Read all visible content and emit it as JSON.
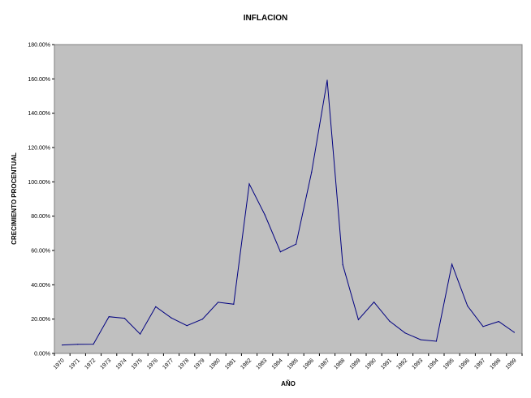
{
  "chart_data": {
    "type": "line",
    "title": "INFLACION",
    "xlabel": "AÑO",
    "ylabel": "CRECIMIENTO PROCENTUAL",
    "ylim": [
      0,
      180
    ],
    "y_ticks": [
      0,
      20,
      40,
      60,
      80,
      100,
      120,
      140,
      160,
      180
    ],
    "y_tick_labels": [
      "0.00%",
      "20.00%",
      "40.00%",
      "60.00%",
      "80.00%",
      "100.00%",
      "120.00%",
      "140.00%",
      "160.00%",
      "180.00%"
    ],
    "categories": [
      "1970",
      "1971",
      "1972",
      "1973",
      "1974",
      "1975",
      "1976",
      "1977",
      "1978",
      "1979",
      "1980",
      "1981",
      "1982",
      "1983",
      "1984",
      "1985",
      "1986",
      "1987",
      "1988",
      "1989",
      "1990",
      "1991",
      "1992",
      "1993",
      "1994",
      "1995",
      "1996",
      "1997",
      "1998",
      "1999"
    ],
    "series": [
      {
        "values": [
          4.9,
          5.3,
          5.4,
          21.4,
          20.5,
          11.3,
          27.2,
          20.7,
          16.2,
          20.0,
          29.8,
          28.7,
          98.8,
          80.8,
          59.2,
          63.7,
          105.7,
          159.2,
          51.7,
          19.7,
          29.9,
          18.8,
          11.9,
          8.0,
          7.1,
          52.0,
          27.7,
          15.7,
          18.6,
          12.3
        ]
      }
    ],
    "grid": false,
    "colors": {
      "plot_background": "#c0c0c0",
      "line": "#000080",
      "axis": "#808080"
    }
  }
}
